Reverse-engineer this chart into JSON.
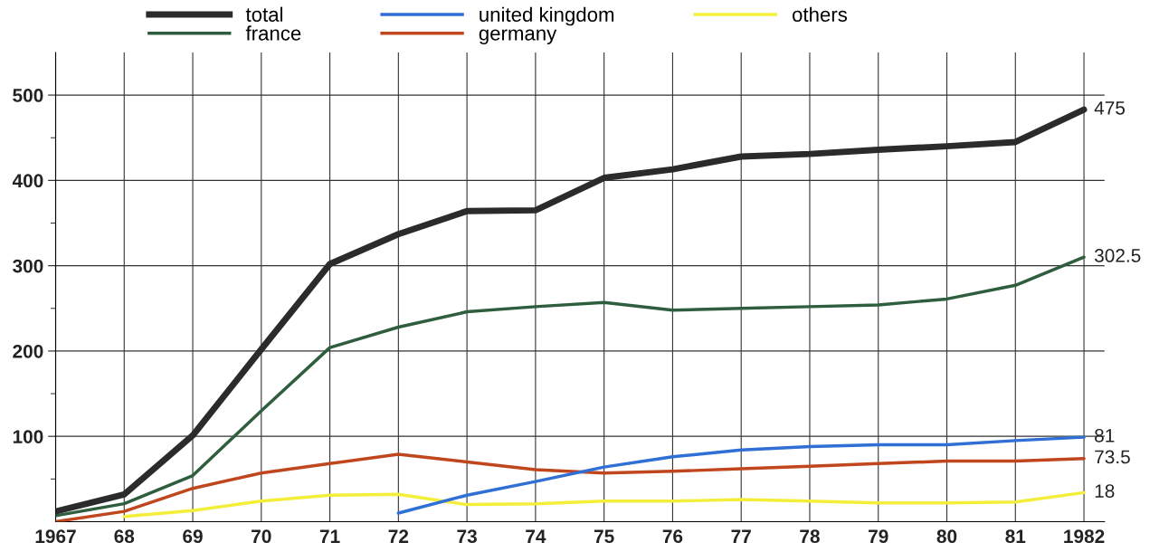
{
  "chart_data": {
    "type": "line",
    "x": [
      1967,
      1968,
      1969,
      1970,
      1971,
      1972,
      1973,
      1974,
      1975,
      1976,
      1977,
      1978,
      1979,
      1980,
      1981,
      1982
    ],
    "series": [
      {
        "name": "total",
        "color": "#2b2b2b",
        "values": [
          12,
          32,
          101,
          202,
          302,
          337,
          364,
          365,
          403,
          413,
          428,
          431,
          436,
          440,
          445,
          483
        ]
      },
      {
        "name": "france",
        "color": "#2e5e3e",
        "values": [
          7,
          21,
          54,
          130,
          204,
          228,
          246,
          252,
          257,
          248,
          250,
          252,
          254,
          261,
          277,
          310
        ]
      },
      {
        "name": "united kingdom",
        "color": "#2f6fd6",
        "values": [
          null,
          null,
          null,
          null,
          null,
          10,
          31,
          47,
          64,
          76,
          84,
          88,
          90,
          90,
          95,
          99
        ]
      },
      {
        "name": "germany",
        "color": "#c0461e",
        "values": [
          0,
          12,
          39,
          57,
          68,
          79,
          70,
          61,
          57,
          59,
          62,
          65,
          68,
          71,
          71,
          74
        ]
      },
      {
        "name": "others",
        "color": "#f2ee3a",
        "values": [
          null,
          6,
          13,
          24,
          31,
          32,
          20,
          21,
          24,
          24,
          26,
          24,
          22,
          22,
          23,
          34
        ]
      }
    ],
    "annotations": [
      "475",
      "302.5",
      "81",
      "73.5",
      "18"
    ],
    "xlim": [
      1967,
      1982.3
    ],
    "xticks": [
      {
        "value": 1967,
        "label": "1967"
      },
      {
        "value": 1968,
        "label": "68"
      },
      {
        "value": 1969,
        "label": "69"
      },
      {
        "value": 1970,
        "label": "70"
      },
      {
        "value": 1971,
        "label": "71"
      },
      {
        "value": 1972,
        "label": "72"
      },
      {
        "value": 1973,
        "label": "73"
      },
      {
        "value": 1974,
        "label": "74"
      },
      {
        "value": 1975,
        "label": "75"
      },
      {
        "value": 1976,
        "label": "76"
      },
      {
        "value": 1977,
        "label": "77"
      },
      {
        "value": 1978,
        "label": "78"
      },
      {
        "value": 1979,
        "label": "79"
      },
      {
        "value": 1980,
        "label": "80"
      },
      {
        "value": 1981,
        "label": "81"
      },
      {
        "value": 1982,
        "label": "1982"
      }
    ],
    "ylim": [
      0,
      550
    ],
    "yticks": [
      {
        "value": 50,
        "label": null
      },
      100,
      {
        "value": 150,
        "label": null
      },
      200,
      {
        "value": 250,
        "label": null
      },
      300,
      {
        "value": 350,
        "label": null
      },
      400,
      {
        "value": 450,
        "label": null
      },
      500
    ],
    "grid": true,
    "legend": "top",
    "marker": "none",
    "line_style": "solid"
  }
}
